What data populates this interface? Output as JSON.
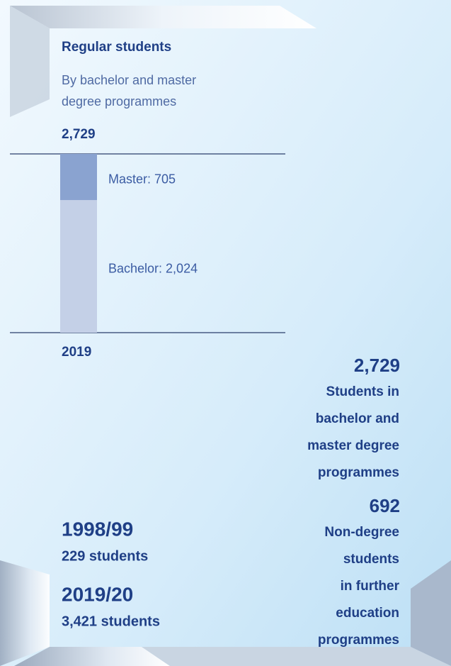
{
  "chart_data": {
    "type": "stacked_bar",
    "title": "Regular students",
    "subtitle": [
      "By bachelor and master",
      "degree programmes"
    ],
    "categories": [
      "2019"
    ],
    "total_labels": [
      "2,729"
    ],
    "series": [
      {
        "name": "Bachelor",
        "color": "#c4d0e7",
        "values": [
          2024
        ],
        "value_labels": [
          "Bachelor: 2,024"
        ]
      },
      {
        "name": "Master",
        "color": "#8aa3d0",
        "values": [
          705
        ],
        "value_labels": [
          "Master: 705"
        ]
      }
    ],
    "ylim": [
      0,
      2729
    ]
  },
  "stats": [
    {
      "value": "2,729",
      "lines": [
        "Students in",
        "bachelor and",
        "master degree",
        "programmes"
      ]
    },
    {
      "value": "692",
      "lines": [
        "Non-degree",
        "students",
        "in further",
        "education",
        "programmes"
      ]
    }
  ],
  "history": [
    {
      "year": "1998/99",
      "text": "229 students"
    },
    {
      "year": "2019/20",
      "text": "3,421 students"
    }
  ]
}
